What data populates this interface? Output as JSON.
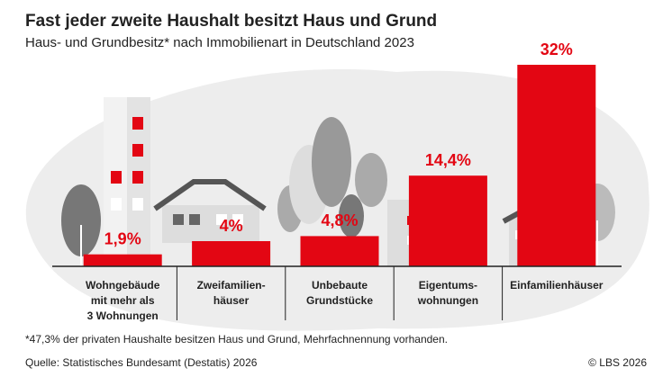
{
  "chart_data": {
    "type": "bar",
    "title": "Fast jeder zweite Haushalt besitzt Haus und Grund",
    "subtitle": "Haus- und Grundbesitz* nach Immobilienart in Deutschland 2023",
    "categories": [
      [
        "Wohngebäude",
        "mit mehr als",
        "3 Wohnungen"
      ],
      [
        "Zweifamilien-",
        "häuser"
      ],
      [
        "Unbebaute",
        "Grundstücke"
      ],
      [
        "Eigentums-",
        "wohnungen"
      ],
      [
        "Einfamilienhäuser"
      ]
    ],
    "values": [
      1.9,
      4,
      4.8,
      14.4,
      32
    ],
    "value_labels": [
      "1,9%",
      "4%",
      "4,8%",
      "14,4%",
      "32%"
    ],
    "color": "#e30613",
    "footnote": "*47,3% der privaten Haushalte besitzen Haus und Grund, Mehrfachnennung vorhanden.",
    "source": "Quelle: Statistisches Bundesamt (Destatis) 2026",
    "copyright": "© LBS 2026"
  }
}
